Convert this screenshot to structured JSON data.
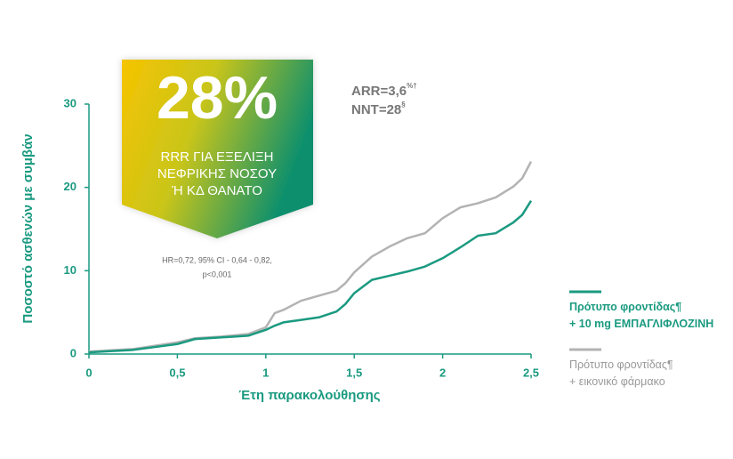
{
  "chart_data": {
    "type": "line",
    "x_label": "Έτη παρακολούθησης",
    "y_label": "Ποσοστό ασθενών με συμβάν",
    "x": [
      0,
      0.25,
      0.5,
      0.6,
      0.75,
      0.9,
      1.0,
      1.05,
      1.1,
      1.2,
      1.3,
      1.4,
      1.45,
      1.5,
      1.6,
      1.7,
      1.8,
      1.9,
      2.0,
      2.1,
      2.2,
      2.3,
      2.4,
      2.45,
      2.5
    ],
    "series": [
      {
        "name": "Πρότυπο φροντίδας¶\n+ 10 mg ΕΜΠΑΓΛΙΦΛΟΖΙΝΗ",
        "color": "#1a9a80",
        "values": [
          0.2,
          0.5,
          1.2,
          1.8,
          2.0,
          2.2,
          2.9,
          3.4,
          3.8,
          4.1,
          4.4,
          5.1,
          6.0,
          7.3,
          8.9,
          9.4,
          9.9,
          10.5,
          11.5,
          12.8,
          14.2,
          14.5,
          15.8,
          16.7,
          18.4
        ]
      },
      {
        "name": "Πρότυπο φροντίδας¶\n+ εικονικό φάρμακο",
        "color": "#b3b3b3",
        "values": [
          0.3,
          0.6,
          1.4,
          1.9,
          2.1,
          2.4,
          3.2,
          4.9,
          5.3,
          6.4,
          7.0,
          7.6,
          8.5,
          9.8,
          11.7,
          12.9,
          13.9,
          14.5,
          16.3,
          17.6,
          18.1,
          18.8,
          20.1,
          21.1,
          23.1
        ]
      }
    ],
    "xlim": [
      0,
      2.5
    ],
    "xticks": [
      0,
      {
        "value": 0.5,
        "label": "0,5"
      },
      1,
      {
        "value": 1.5,
        "label": "1,5"
      },
      2,
      {
        "value": 2.5,
        "label": "2,5"
      }
    ],
    "ylim": [
      0,
      30
    ],
    "yticks": [
      0,
      10,
      20,
      30
    ],
    "grid": false,
    "badge_title": "28%",
    "badge_text": [
      "RRR ΓΙΑ ΕΞΕΛΙΞΗ",
      "ΝΕΦΡΙΚΗΣ ΝΟΣΟΥ",
      "Ή ΚΔ ΘΑΝΑΤΟ"
    ],
    "annotations": [
      {
        "text": "ARR=3,6",
        "sup": "%†"
      },
      {
        "text": "NNT=28",
        "sup": "§"
      }
    ],
    "stats_text": [
      "HR=0,72, 95% CI - 0,64 - 0,82,",
      "p<0,001"
    ]
  }
}
